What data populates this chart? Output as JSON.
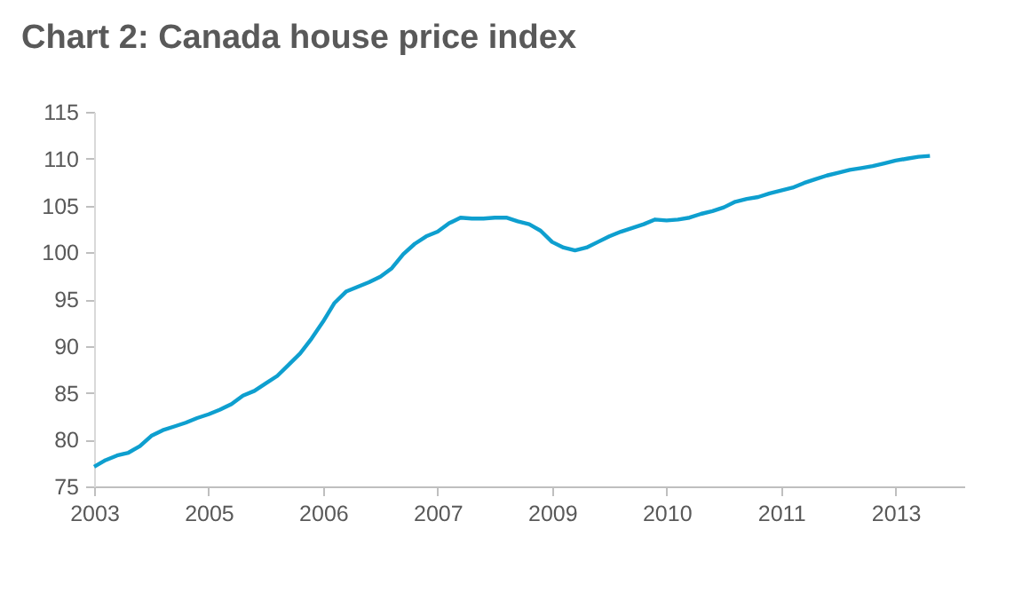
{
  "chart_data": {
    "type": "line",
    "title": "Chart 2: Canada house price index",
    "categories": [
      "2003",
      null,
      null,
      null,
      null,
      null,
      null,
      null,
      null,
      null,
      "2005",
      null,
      null,
      null,
      null,
      null,
      null,
      null,
      null,
      null,
      "2006",
      null,
      null,
      null,
      null,
      null,
      null,
      null,
      null,
      null,
      "2007",
      null,
      null,
      null,
      null,
      null,
      null,
      null,
      null,
      null,
      "2009",
      null,
      null,
      null,
      null,
      null,
      null,
      null,
      null,
      null,
      "2010",
      null,
      null,
      null,
      null,
      null,
      null,
      null,
      null,
      null,
      "2011",
      null,
      null,
      null,
      null,
      null,
      null,
      null,
      null,
      null,
      "2013",
      null,
      null,
      null,
      null,
      null,
      null
    ],
    "series": [
      {
        "color": "#0e9fcf",
        "values": [
          77.1,
          77.8,
          78.3,
          78.6,
          79.3,
          80.4,
          81.0,
          81.4,
          81.8,
          82.3,
          82.7,
          83.2,
          83.8,
          84.7,
          85.2,
          86.0,
          86.8,
          88.0,
          89.2,
          90.8,
          92.6,
          94.6,
          95.8,
          96.3,
          96.8,
          97.4,
          98.3,
          99.8,
          100.9,
          101.7,
          102.2,
          103.1,
          103.7,
          103.6,
          103.6,
          103.7,
          103.7,
          103.3,
          103.0,
          102.3,
          101.1,
          100.5,
          100.2,
          100.5,
          101.1,
          101.7,
          102.2,
          102.6,
          103.0,
          103.5,
          103.4,
          103.5,
          103.7,
          104.1,
          104.4,
          104.8,
          105.4,
          105.7,
          105.9,
          106.3,
          106.6,
          106.9,
          107.4,
          107.8,
          108.2,
          108.5,
          108.8,
          109.0,
          109.2,
          109.5,
          109.8,
          110.0,
          110.2,
          110.3,
          null,
          null,
          null
        ]
      }
    ],
    "ylim": [
      75,
      115
    ],
    "yticks": [
      75,
      80,
      85,
      90,
      95,
      100,
      105,
      110,
      115
    ],
    "grid": false,
    "legend": false,
    "marker": "none",
    "line_style": "solid"
  }
}
